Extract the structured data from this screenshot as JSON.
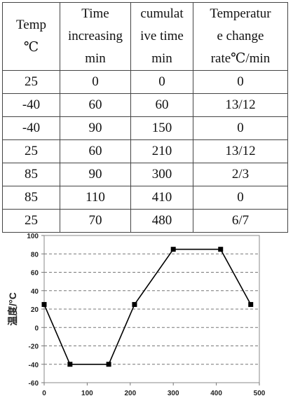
{
  "table": {
    "headers": [
      [
        "Temp",
        "℃"
      ],
      [
        "Time",
        "increasing",
        "min"
      ],
      [
        "cumulat",
        "ive time",
        "min"
      ],
      [
        "Temperatur",
        "e change",
        "rate℃/min"
      ]
    ],
    "rows": [
      [
        "25",
        "0",
        "0",
        "0"
      ],
      [
        "-40",
        "60",
        "60",
        "13/12"
      ],
      [
        "-40",
        "90",
        "150",
        "0"
      ],
      [
        "25",
        "60",
        "210",
        "13/12"
      ],
      [
        "85",
        "90",
        "300",
        "2/3"
      ],
      [
        "85",
        "110",
        "410",
        "0"
      ],
      [
        "25",
        "70",
        "480",
        "6/7"
      ]
    ]
  },
  "chart_data": {
    "type": "line",
    "ylabel": "温度/°C",
    "xlabel": "",
    "xlim": [
      0,
      500
    ],
    "ylim": [
      -60,
      100
    ],
    "xticks": [
      0,
      100,
      200,
      300,
      400,
      500
    ],
    "yticks": [
      -60,
      -40,
      -20,
      0,
      20,
      40,
      60,
      80,
      100
    ],
    "grid": "horizontal-dashed",
    "series": [
      {
        "x": [
          0,
          60,
          150,
          210,
          300,
          410,
          480
        ],
        "y": [
          25,
          -40,
          -40,
          25,
          85,
          85,
          25
        ],
        "color": "#000000",
        "marker": "square"
      }
    ]
  }
}
